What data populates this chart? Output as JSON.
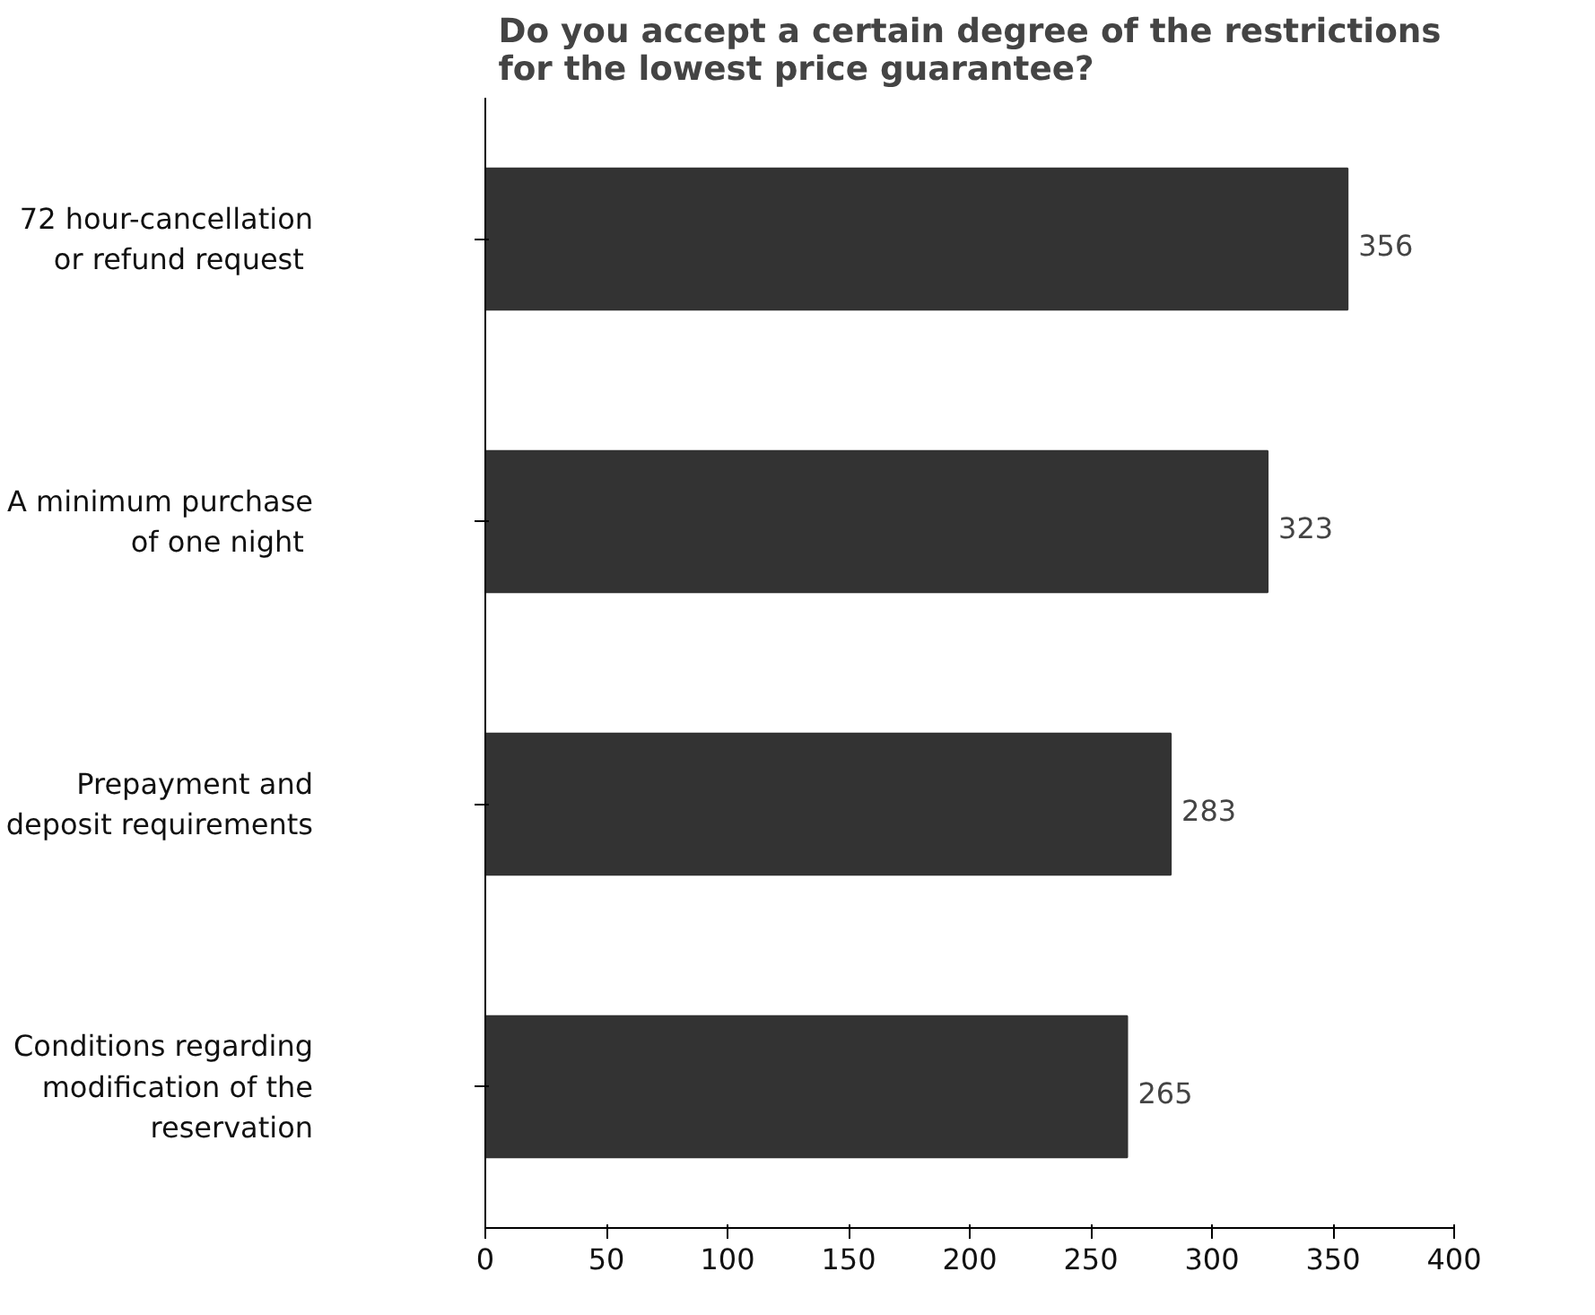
{
  "chart_data": {
    "type": "bar",
    "orientation": "horizontal",
    "title": "Do you accept a certain degree of the restrictions\nfor the lowest price guarantee?",
    "categories": [
      "72 hour-cancellation\nor refund  request",
      "A minimum purchase\nof one  night",
      "Prepayment and\ndeposit requirements",
      "Conditions regarding\nmodification of the\nreservation"
    ],
    "values": [
      356,
      323,
      283,
      265
    ],
    "color": "#333333",
    "xlim": [
      0,
      400
    ],
    "xticks": [
      0,
      50,
      100,
      150,
      200,
      250,
      300,
      350,
      400
    ],
    "data_labels": true,
    "grid": false
  }
}
